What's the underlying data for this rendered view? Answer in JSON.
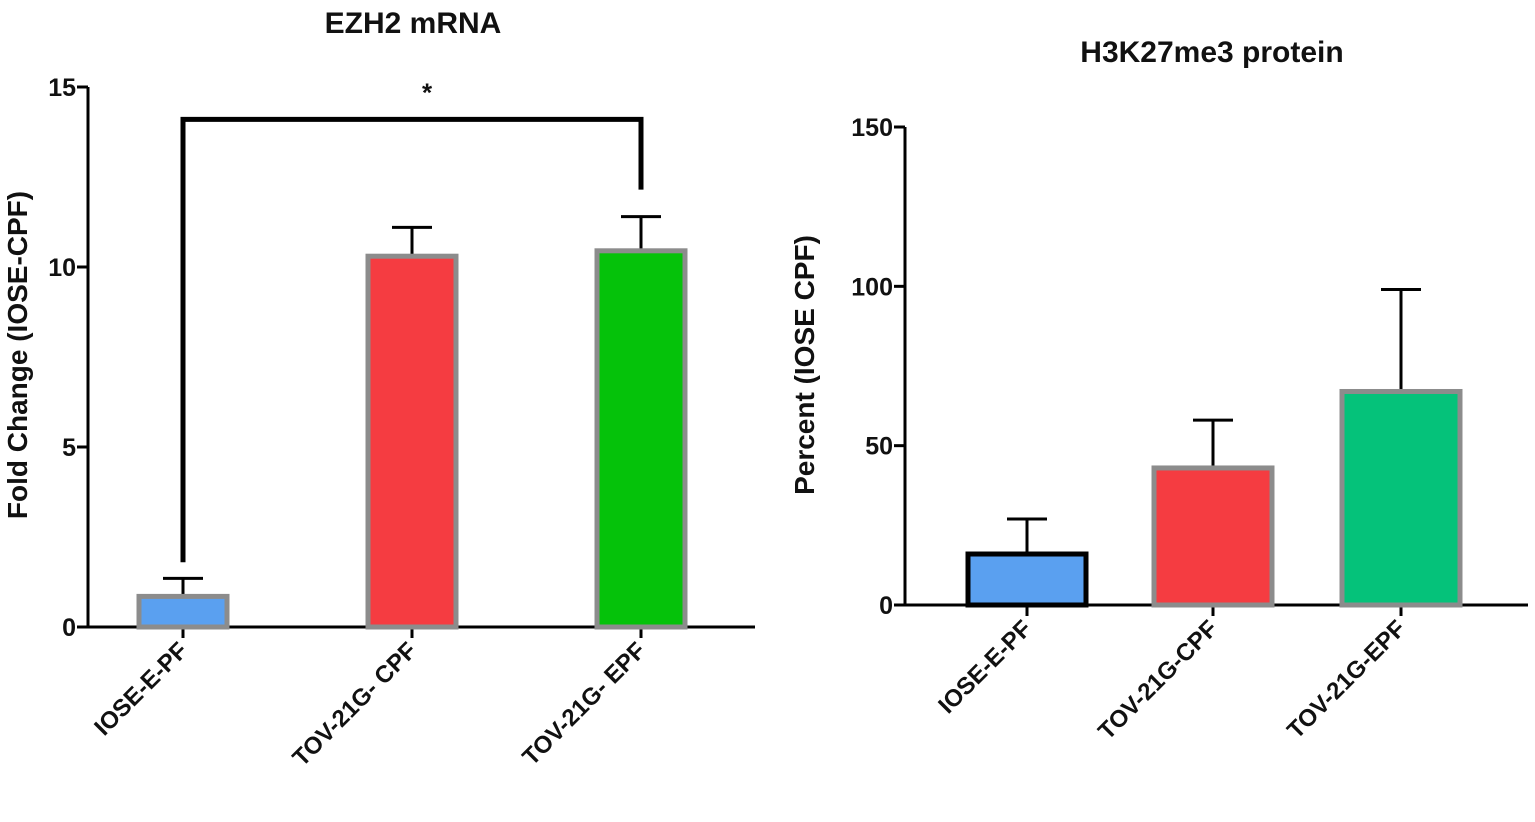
{
  "chart_data": [
    {
      "type": "bar",
      "title": "EZH2 mRNA",
      "xlabel": "",
      "ylabel": "Fold Change (IOSE-CPF)",
      "ylim": [
        0,
        15
      ],
      "yticks": [
        0,
        5,
        10,
        15
      ],
      "grid": false,
      "categories": [
        "IOSE-E-PF",
        "TOV-21G- CPF",
        "TOV-21G- EPF"
      ],
      "values": [
        0.85,
        10.3,
        10.45
      ],
      "errors": [
        0.5,
        0.8,
        0.95
      ],
      "colors": [
        "#5aa0f0",
        "#f53c41",
        "#05c20a"
      ],
      "border_colors": [
        "#8c8c8c",
        "#8c8c8c",
        "#8c8c8c"
      ],
      "annotations": [
        {
          "text": "*",
          "between": [
            "IOSE-E-PF",
            "TOV-21G- EPF"
          ],
          "bracket_value": 14.1
        }
      ]
    },
    {
      "type": "bar",
      "title": "H3K27me3 protein",
      "xlabel": "",
      "ylabel": "Percent (IOSE  CPF)",
      "ylim": [
        0,
        150
      ],
      "yticks": [
        0,
        50,
        100,
        150
      ],
      "grid": false,
      "categories": [
        "IOSE-E-PF",
        "TOV-21G-CPF",
        "TOV-21G-EPF"
      ],
      "values": [
        16,
        43,
        67
      ],
      "errors": [
        11,
        15,
        32
      ],
      "colors": [
        "#5aa0f0",
        "#f53c41",
        "#05c27a"
      ],
      "border_colors": [
        "#000000",
        "#8c8c8c",
        "#8c8c8c"
      ]
    }
  ]
}
